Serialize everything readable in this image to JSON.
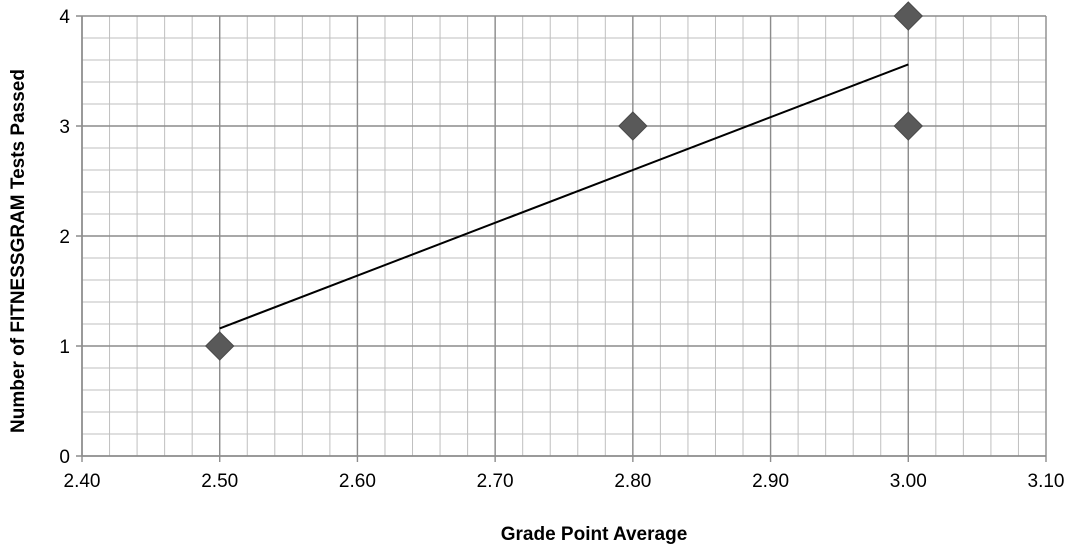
{
  "chart_data": {
    "type": "scatter",
    "title": "",
    "xlabel": "Grade Point Average",
    "ylabel": "Number of FITNESSGRAM Tests Passed",
    "xlim": [
      2.4,
      3.1
    ],
    "ylim": [
      0,
      4
    ],
    "x_ticks": [
      "2.40",
      "2.50",
      "2.60",
      "2.70",
      "2.80",
      "2.90",
      "3.00",
      "3.10"
    ],
    "y_ticks": [
      "0",
      "1",
      "2",
      "3",
      "4"
    ],
    "x_tick_values": [
      2.4,
      2.5,
      2.6,
      2.7,
      2.8,
      2.9,
      3.0,
      3.1
    ],
    "y_tick_values": [
      0,
      1,
      2,
      3,
      4
    ],
    "x_minor_step": 0.02,
    "y_minor_step": 0.2,
    "grid": true,
    "legend": "none",
    "series": [
      {
        "marker": "diamond",
        "color": "#595959",
        "points": [
          {
            "x": 2.5,
            "y": 1
          },
          {
            "x": 2.8,
            "y": 3
          },
          {
            "x": 3.0,
            "y": 3
          },
          {
            "x": 3.0,
            "y": 4
          }
        ]
      }
    ],
    "trendline": {
      "type": "linear",
      "color": "#000000",
      "start": {
        "x": 2.5,
        "y": 1.16
      },
      "end": {
        "x": 3.0,
        "y": 3.56
      }
    },
    "colors": {
      "major_grid": "#8c8c8c",
      "minor_grid": "#bfbfbf",
      "axis": "#8c8c8c"
    }
  }
}
